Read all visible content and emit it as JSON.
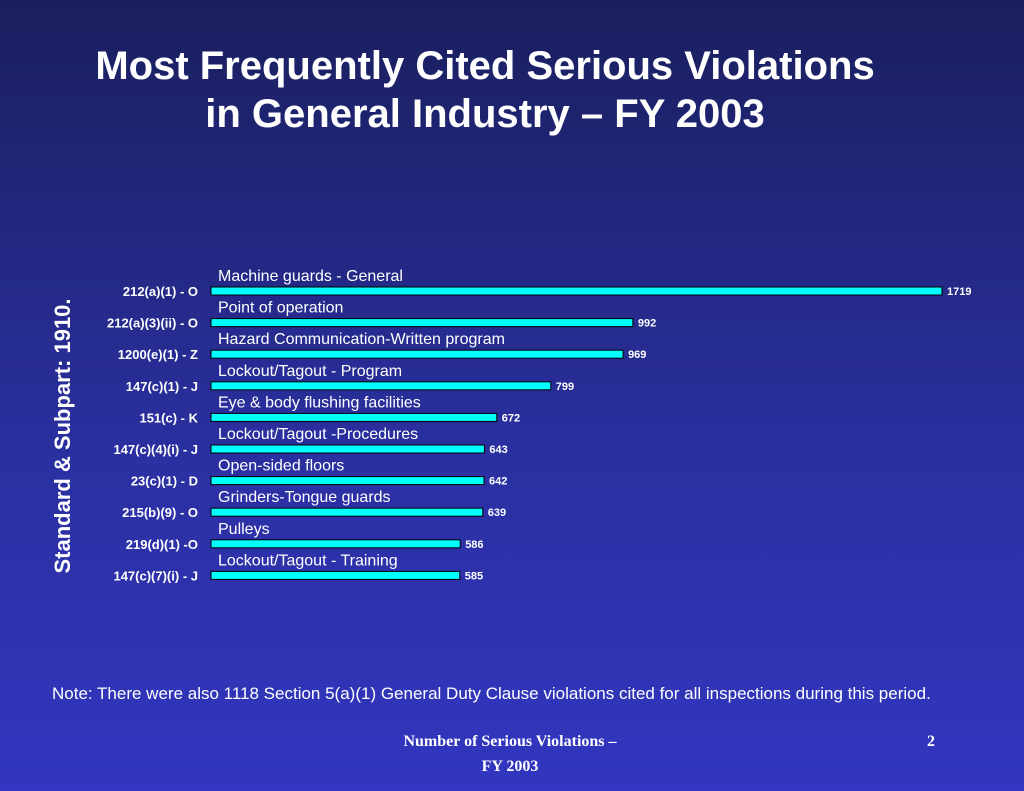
{
  "slide": {
    "title_line1": "Most Frequently Cited Serious Violations",
    "title_line2": "in General Industry – FY 2003",
    "note": "Note: There were also 1118 Section 5(a)(1) General Duty Clause violations cited for all inspections during this period.",
    "footer_line1": "Number of Serious Violations –",
    "footer_line2": "FY 2003",
    "page_number": "2"
  },
  "colors": {
    "bar_fill": "#00ffff",
    "bar_stroke": "#000000",
    "text": "#ffffff",
    "background_top": "#1a1f5e",
    "background_bottom": "#3236c0"
  },
  "chart_data": {
    "type": "bar",
    "orientation": "horizontal",
    "ylabel": "Standard & Subpart:  1910.",
    "xlabel": "",
    "xlim": [
      0,
      1719
    ],
    "grid": false,
    "legend": "none",
    "categories": [
      "212(a)(1) - O",
      "212(a)(3)(ii) - O",
      "1200(e)(1) - Z",
      "147(c)(1) - J",
      "151(c) - K",
      "147(c)(4)(i) - J",
      "23(c)(1) - D",
      "215(b)(9) - O",
      "219(d)(1) -O",
      "147(c)(7)(i) - J"
    ],
    "bar_labels": [
      "Machine guards - General",
      "Point of operation",
      "Hazard Communication-Written program",
      "Lockout/Tagout - Program",
      "Eye & body flushing facilities",
      "Lockout/Tagout -Procedures",
      "Open-sided floors",
      "Grinders-Tongue guards",
      "Pulleys",
      "Lockout/Tagout - Training"
    ],
    "values": [
      1719,
      992,
      969,
      799,
      672,
      643,
      642,
      639,
      586,
      585
    ]
  }
}
